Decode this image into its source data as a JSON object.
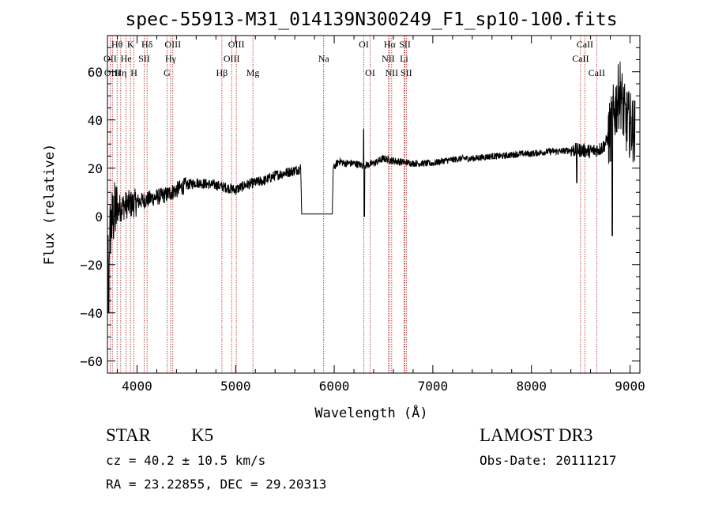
{
  "chart_data": {
    "type": "line",
    "title": "spec-55913-M31_014139N300249_F1_sp10-100.fits",
    "xlabel": "Wavelength (Å)",
    "ylabel": "Flux (relative)",
    "xlim": [
      3700,
      9100
    ],
    "ylim": [
      -65,
      75
    ],
    "xticks": [
      4000,
      5000,
      6000,
      7000,
      8000,
      9000
    ],
    "yticks": [
      -60,
      -40,
      -20,
      0,
      20,
      40,
      60
    ],
    "grid": false,
    "line_color": "#000000",
    "marker_color": "#b22222",
    "spectrum_anchors": [
      [
        3700,
        -15
      ],
      [
        3730,
        -5
      ],
      [
        3760,
        0
      ],
      [
        3800,
        3
      ],
      [
        3850,
        4
      ],
      [
        3900,
        5
      ],
      [
        3950,
        5
      ],
      [
        4000,
        6
      ],
      [
        4100,
        7
      ],
      [
        4200,
        8
      ],
      [
        4300,
        9
      ],
      [
        4400,
        11
      ],
      [
        4500,
        13
      ],
      [
        4600,
        14
      ],
      [
        4700,
        13.5
      ],
      [
        4800,
        13
      ],
      [
        4900,
        12
      ],
      [
        5000,
        11
      ],
      [
        5100,
        13
      ],
      [
        5200,
        14
      ],
      [
        5300,
        15
      ],
      [
        5400,
        17
      ],
      [
        5500,
        18
      ],
      [
        5600,
        19
      ],
      [
        5660,
        20
      ],
      [
        5670,
        1
      ],
      [
        5980,
        1
      ],
      [
        5990,
        20
      ],
      [
        6050,
        23
      ],
      [
        6100,
        22
      ],
      [
        6200,
        22
      ],
      [
        6300,
        21
      ],
      [
        6400,
        22
      ],
      [
        6500,
        24
      ],
      [
        6600,
        23
      ],
      [
        6700,
        22.5
      ],
      [
        6800,
        22
      ],
      [
        6900,
        22
      ],
      [
        7000,
        22
      ],
      [
        7100,
        23
      ],
      [
        7200,
        23.5
      ],
      [
        7300,
        24
      ],
      [
        7400,
        24
      ],
      [
        7500,
        24.5
      ],
      [
        7600,
        25
      ],
      [
        7700,
        25
      ],
      [
        7800,
        25.5
      ],
      [
        7900,
        26
      ],
      [
        8000,
        26
      ],
      [
        8100,
        26.5
      ],
      [
        8200,
        27
      ],
      [
        8300,
        27
      ],
      [
        8400,
        27.5
      ],
      [
        8500,
        27.5
      ],
      [
        8600,
        27
      ],
      [
        8700,
        28
      ],
      [
        8750,
        30
      ],
      [
        8800,
        35
      ],
      [
        8850,
        45
      ],
      [
        8900,
        52
      ],
      [
        8950,
        40
      ],
      [
        9000,
        38
      ],
      [
        9050,
        35
      ]
    ],
    "line_markers": [
      {
        "label": "Hθ",
        "wavelength": 3798,
        "row": 0
      },
      {
        "label": "K",
        "wavelength": 3934,
        "row": 0
      },
      {
        "label": "Hδ",
        "wavelength": 4102,
        "row": 0
      },
      {
        "label": "OIII",
        "wavelength": 4363,
        "row": 0
      },
      {
        "label": "OIII",
        "wavelength": 5007,
        "row": 0
      },
      {
        "label": "OI",
        "wavelength": 6300,
        "row": 0
      },
      {
        "label": "Hα",
        "wavelength": 6563,
        "row": 0
      },
      {
        "label": "SII",
        "wavelength": 6717,
        "row": 0
      },
      {
        "label": "CaII",
        "wavelength": 8542,
        "row": 0
      },
      {
        "label": "OII",
        "wavelength": 3727,
        "row": 1
      },
      {
        "label": "He",
        "wavelength": 3889,
        "row": 1
      },
      {
        "label": "SII",
        "wavelength": 4072,
        "row": 1
      },
      {
        "label": "Hγ",
        "wavelength": 4341,
        "row": 1
      },
      {
        "label": "OIII",
        "wavelength": 4959,
        "row": 1
      },
      {
        "label": "Na",
        "wavelength": 5893,
        "row": 1
      },
      {
        "label": "NII",
        "wavelength": 6548,
        "row": 1
      },
      {
        "label": "Li",
        "wavelength": 6708,
        "row": 1
      },
      {
        "label": "CaII",
        "wavelength": 8498,
        "row": 1
      },
      {
        "label": "OIII",
        "wavelength": 3750,
        "row": 2
      },
      {
        "label": "Hη",
        "wavelength": 3835,
        "row": 2
      },
      {
        "label": "H",
        "wavelength": 3969,
        "row": 2
      },
      {
        "label": "G",
        "wavelength": 4305,
        "row": 2
      },
      {
        "label": "Hβ",
        "wavelength": 4861,
        "row": 2
      },
      {
        "label": "Mg",
        "wavelength": 5175,
        "row": 2
      },
      {
        "label": "OI",
        "wavelength": 6364,
        "row": 2
      },
      {
        "label": "NII",
        "wavelength": 6583,
        "row": 2
      },
      {
        "label": "SII",
        "wavelength": 6731,
        "row": 2
      },
      {
        "label": "CaII",
        "wavelength": 8662,
        "row": 2
      }
    ]
  },
  "info": {
    "class_label": "STAR",
    "subclass_label": "K5",
    "survey_label": "LAMOST DR3",
    "cz_text": "cz = 40.2 ± 10.5 km/s",
    "obs_date_text": "Obs-Date: 20111217",
    "radec_text": "RA =  23.22855, DEC =  29.20313"
  }
}
